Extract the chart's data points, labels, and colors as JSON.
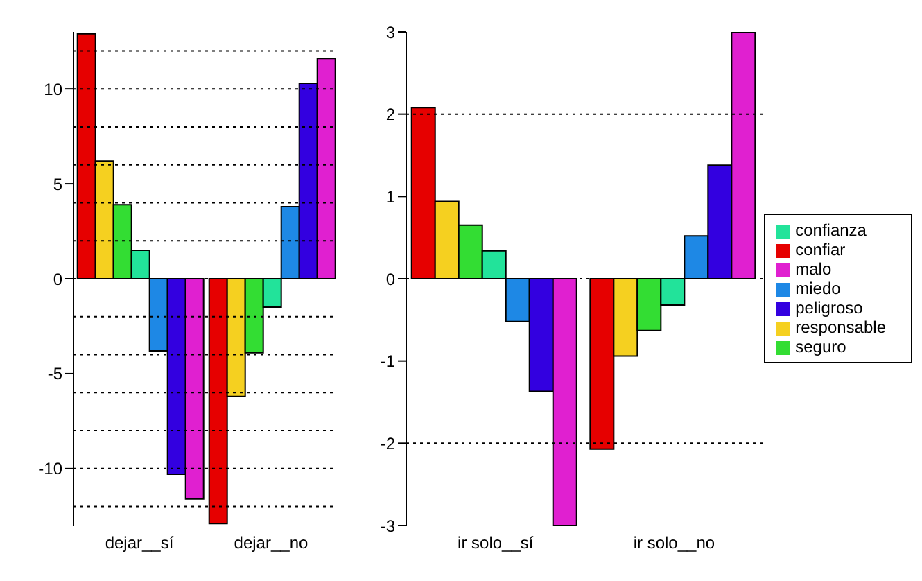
{
  "chart_data": [
    {
      "type": "bar",
      "categories": [
        "dejar__sí",
        "dejar__no"
      ],
      "ylim": [
        -13,
        13
      ],
      "yticks": [
        -10,
        -5,
        0,
        5,
        10
      ],
      "grid": false,
      "legend": false,
      "series": [
        {
          "color": "#e60000",
          "values": [
            12.9,
            -12.9
          ]
        },
        {
          "color": "#f5d020",
          "values": [
            6.2,
            -6.2
          ]
        },
        {
          "color": "#33dd33",
          "values": [
            3.9,
            -3.9
          ]
        },
        {
          "color": "#22e39a",
          "values": [
            1.5,
            -1.5
          ]
        },
        {
          "color": "#1e88e5",
          "values": [
            -3.8,
            3.8
          ]
        },
        {
          "color": "#3300e0",
          "values": [
            -10.3,
            10.3
          ]
        },
        {
          "color": "#e020d0",
          "values": [
            -11.6,
            11.6
          ]
        }
      ],
      "ref_lines": [
        {
          "axis": "y",
          "value": 12,
          "line_style": "dotted",
          "color": "#000000"
        },
        {
          "axis": "y",
          "value": 10,
          "line_style": "dotted",
          "color": "#000000"
        },
        {
          "axis": "y",
          "value": 8,
          "line_style": "dotted",
          "color": "#000000"
        },
        {
          "axis": "y",
          "value": 6,
          "line_style": "dotted",
          "color": "#000000"
        },
        {
          "axis": "y",
          "value": 4,
          "line_style": "dotted",
          "color": "#000000"
        },
        {
          "axis": "y",
          "value": 2,
          "line_style": "dotted",
          "color": "#000000"
        },
        {
          "axis": "y",
          "value": 0,
          "line_style": "dotted",
          "color": "#000000"
        },
        {
          "axis": "y",
          "value": -2,
          "line_style": "dotted",
          "color": "#000000"
        },
        {
          "axis": "y",
          "value": -4,
          "line_style": "dotted",
          "color": "#000000"
        },
        {
          "axis": "y",
          "value": -6,
          "line_style": "dotted",
          "color": "#000000"
        },
        {
          "axis": "y",
          "value": -8,
          "line_style": "dotted",
          "color": "#000000"
        },
        {
          "axis": "y",
          "value": -10,
          "line_style": "dotted",
          "color": "#000000"
        },
        {
          "axis": "y",
          "value": -12,
          "line_style": "dotted",
          "color": "#000000"
        }
      ]
    },
    {
      "type": "bar",
      "categories": [
        "ir solo__sí",
        "ir solo__no"
      ],
      "ylim": [
        -3,
        3
      ],
      "yticks": [
        -3,
        -2,
        -1,
        0,
        1,
        2,
        3
      ],
      "grid": false,
      "legend": "right",
      "series": [
        {
          "name": "confiar",
          "color": "#e60000",
          "values": [
            2.08,
            -2.07
          ]
        },
        {
          "name": "responsable",
          "color": "#f5d020",
          "values": [
            0.94,
            -0.94
          ]
        },
        {
          "name": "seguro",
          "color": "#33dd33",
          "values": [
            0.65,
            -0.63
          ]
        },
        {
          "name": "confianza",
          "color": "#22e39a",
          "values": [
            0.34,
            -0.32
          ]
        },
        {
          "name": "miedo",
          "color": "#1e88e5",
          "values": [
            -0.52,
            0.52
          ]
        },
        {
          "name": "peligroso",
          "color": "#3300e0",
          "values": [
            -1.37,
            1.38
          ]
        },
        {
          "name": "malo",
          "color": "#e020d0",
          "values": [
            -3,
            3
          ]
        }
      ],
      "ref_lines": [
        {
          "axis": "y",
          "value": 2,
          "line_style": "dotted",
          "color": "#000000"
        },
        {
          "axis": "y",
          "value": 0,
          "line_style": "dotted",
          "color": "#000000"
        },
        {
          "axis": "y",
          "value": -2,
          "line_style": "dotted",
          "color": "#000000"
        }
      ]
    }
  ]
}
